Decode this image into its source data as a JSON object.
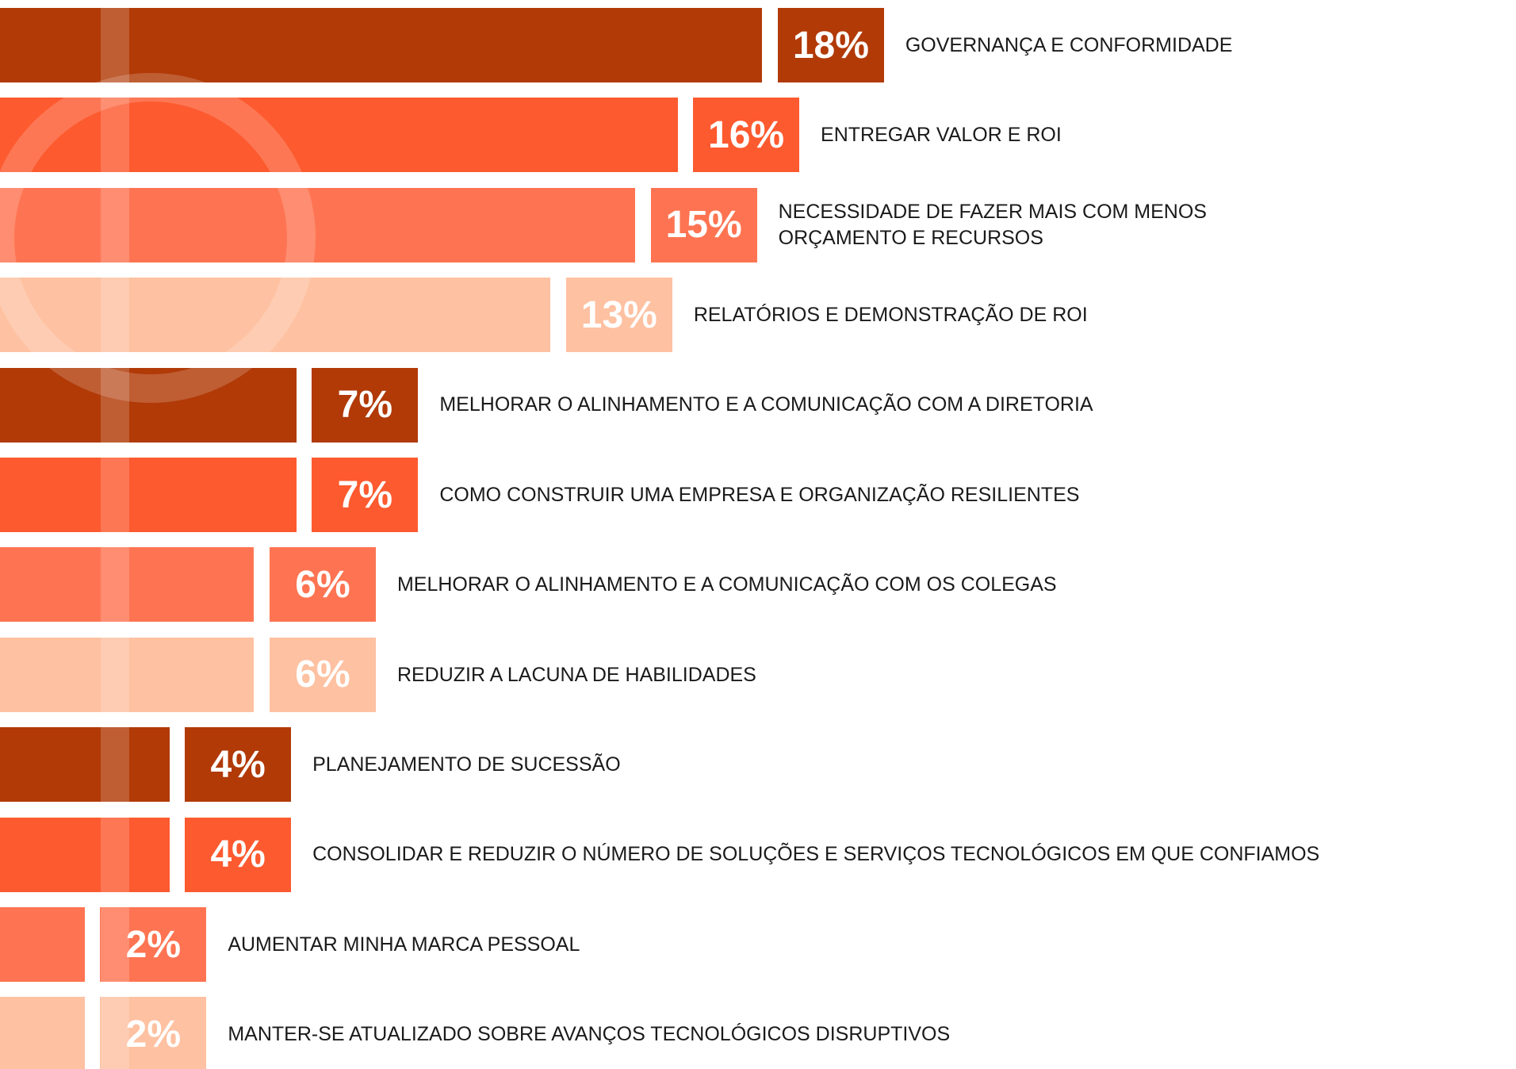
{
  "chart_data": {
    "type": "bar",
    "orientation": "horizontal",
    "categories": [
      "GOVERNANÇA E CONFORMIDADE",
      "ENTREGAR VALOR E ROI",
      "NECESSIDADE DE FAZER MAIS COM MENOS\nORÇAMENTO E RECURSOS",
      "RELATÓRIOS E DEMONSTRAÇÃO DE ROI",
      "MELHORAR O ALINHAMENTO E A COMUNICAÇÃO COM A DIRETORIA",
      "COMO CONSTRUIR UMA EMPRESA E ORGANIZAÇÃO RESILIENTES",
      "MELHORAR O ALINHAMENTO E A COMUNICAÇÃO COM OS COLEGAS",
      "REDUZIR A LACUNA DE HABILIDADES",
      "PLANEJAMENTO DE SUCESSÃO",
      "CONSOLIDAR E REDUZIR O NÚMERO DE SOLUÇÕES E SERVIÇOS TECNOLÓGICOS EM QUE CONFIAMOS",
      "AUMENTAR MINHA MARCA PESSOAL",
      "MANTER-SE ATUALIZADO SOBRE AVANÇOS TECNOLÓGICOS DISRUPTIVOS"
    ],
    "values": [
      18,
      16,
      15,
      13,
      7,
      7,
      6,
      6,
      4,
      4,
      2,
      2
    ],
    "value_labels": [
      "18%",
      "16%",
      "15%",
      "13%",
      "7%",
      "7%",
      "6%",
      "6%",
      "4%",
      "4%",
      "2%",
      "2%"
    ],
    "colors": [
      "#b13a07",
      "#fd5a2f",
      "#fe7452",
      "#fec1a1",
      "#b13a07",
      "#fd5a2f",
      "#fe7452",
      "#fec1a1",
      "#b13a07",
      "#fd5a2f",
      "#fe7452",
      "#fec1a1"
    ]
  }
}
